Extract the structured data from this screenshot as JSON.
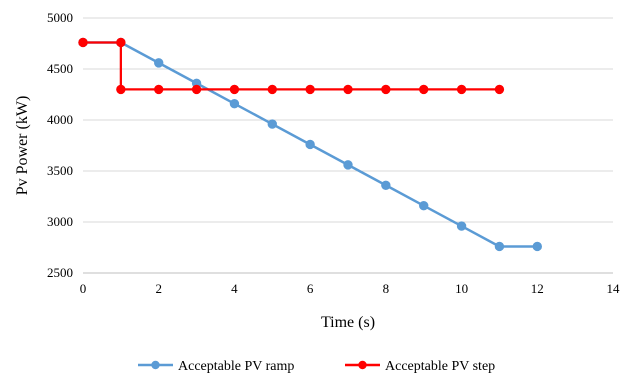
{
  "chart_data": {
    "type": "line",
    "xlabel": "Time (s)",
    "ylabel": "Pv Power (kW)",
    "xlim": [
      0,
      14
    ],
    "ylim": [
      2500,
      5000
    ],
    "xticks": [
      0,
      2,
      4,
      6,
      8,
      10,
      12,
      14
    ],
    "yticks": [
      2500,
      3000,
      3500,
      4000,
      4500,
      5000
    ],
    "grid": "horizontal",
    "legend_position": "bottom",
    "series": [
      {
        "name": "Acceptable PV ramp",
        "color": "#5B9BD5",
        "step": false,
        "x": [
          0,
          1,
          2,
          3,
          4,
          5,
          6,
          7,
          8,
          9,
          10,
          11,
          12
        ],
        "y": [
          4760,
          4760,
          4560,
          4360,
          4160,
          3960,
          3760,
          3560,
          3360,
          3160,
          2960,
          2760,
          2760
        ]
      },
      {
        "name": "Acceptable PV step",
        "color": "#FF0000",
        "step": true,
        "x": [
          0,
          1,
          1,
          2,
          3,
          4,
          5,
          6,
          7,
          8,
          9,
          10,
          11
        ],
        "y": [
          4760,
          4760,
          4300,
          4300,
          4300,
          4300,
          4300,
          4300,
          4300,
          4300,
          4300,
          4300,
          4300
        ]
      }
    ]
  }
}
